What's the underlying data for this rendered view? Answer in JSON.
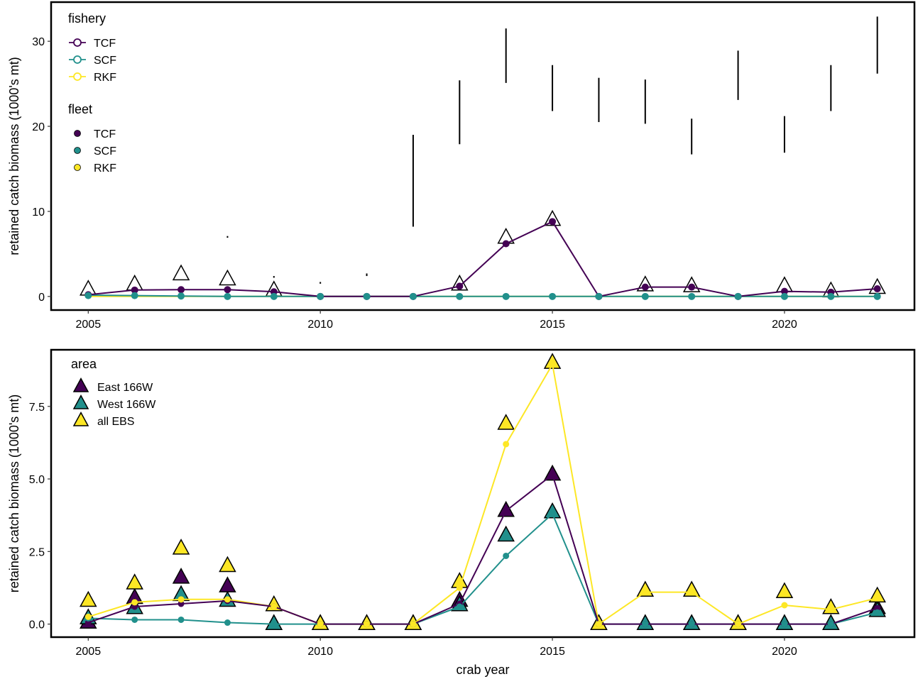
{
  "colors": {
    "TCF": "#440154",
    "SCF": "#21908C",
    "RKF": "#FDE725",
    "black": "#000000"
  },
  "chart_data": [
    {
      "type": "line",
      "xlabel": "",
      "ylabel": "retained catch biomass (1000's mt)",
      "xlim": [
        2004.2,
        2022.8
      ],
      "ylim": [
        -1.6,
        34.6
      ],
      "x_ticks": [
        2005,
        2010,
        2015,
        2020
      ],
      "y_ticks": [
        0,
        10,
        20,
        30
      ],
      "legend_fishery": {
        "title": "fishery",
        "items": [
          "TCF",
          "SCF",
          "RKF"
        ]
      },
      "legend_fleet": {
        "title": "fleet",
        "items": [
          "TCF",
          "SCF",
          "RKF"
        ]
      },
      "fishery_lines": [
        {
          "name": "TCF",
          "x": [
            2005,
            2006,
            2007,
            2008,
            2009,
            2010,
            2011,
            2012,
            2013,
            2014,
            2015,
            2016,
            2017,
            2018,
            2019,
            2020,
            2021,
            2022
          ],
          "y": [
            0.2,
            0.75,
            0.8,
            0.8,
            0.55,
            0,
            0,
            0,
            1.2,
            6.2,
            8.8,
            0,
            1.1,
            1.1,
            0,
            0.6,
            0.5,
            0.9
          ]
        },
        {
          "name": "SCF",
          "x": [
            2005,
            2006,
            2007,
            2008,
            2009,
            2010,
            2011,
            2012,
            2013,
            2014,
            2015,
            2016,
            2017,
            2018,
            2019,
            2020,
            2021,
            2022
          ],
          "y": [
            0.15,
            0.1,
            0.05,
            0,
            0,
            0,
            0,
            0,
            0,
            0,
            0,
            0,
            0,
            0,
            0,
            0,
            0,
            0
          ]
        },
        {
          "name": "RKF",
          "x": [
            2005,
            2006,
            2007,
            2008,
            2009,
            2010,
            2011,
            2012,
            2013,
            2014,
            2015,
            2016,
            2017,
            2018,
            2019,
            2020,
            2021,
            2022
          ],
          "y": [
            0,
            0,
            0,
            0,
            0,
            0,
            0,
            0,
            0,
            0,
            0,
            0,
            0,
            0,
            0,
            0,
            0,
            0
          ]
        }
      ],
      "fleet_points": [
        {
          "name": "TCF",
          "x": [
            2005,
            2006,
            2007,
            2008,
            2009,
            2010,
            2011,
            2012,
            2013,
            2014,
            2015,
            2016,
            2017,
            2018,
            2019,
            2020,
            2021,
            2022
          ],
          "y": [
            0.2,
            0.75,
            0.8,
            0.8,
            0.55,
            0,
            0,
            0,
            1.2,
            6.2,
            8.8,
            0,
            1.1,
            1.1,
            0,
            0.6,
            0.5,
            0.9
          ]
        },
        {
          "name": "SCF",
          "x": [
            2005,
            2006,
            2007,
            2008,
            2009,
            2010,
            2011,
            2012,
            2013,
            2014,
            2015,
            2016,
            2017,
            2018,
            2019,
            2020,
            2021,
            2022
          ],
          "y": [
            0.1,
            0.1,
            0.05,
            0,
            0,
            0,
            0,
            0,
            0,
            0,
            0,
            0,
            0,
            0,
            0,
            0,
            0,
            0
          ]
        }
      ],
      "observed_total": {
        "x": [
          2005,
          2006,
          2007,
          2008,
          2009,
          2013,
          2014,
          2015,
          2017,
          2018,
          2020,
          2021,
          2022
        ],
        "y": [
          0.8,
          1.4,
          2.6,
          2.0,
          0.7,
          1.4,
          6.9,
          9.0,
          1.3,
          1.2,
          1.2,
          0.6,
          1.0
        ]
      },
      "intervals": [
        {
          "x": 2012,
          "low": 8.2,
          "high": 19.0
        },
        {
          "x": 2013,
          "low": 17.9,
          "high": 25.4
        },
        {
          "x": 2014,
          "low": 25.1,
          "high": 31.5
        },
        {
          "x": 2015,
          "low": 21.8,
          "high": 27.2
        },
        {
          "x": 2016,
          "low": 20.5,
          "high": 25.7
        },
        {
          "x": 2017,
          "low": 20.3,
          "high": 25.5
        },
        {
          "x": 2018,
          "low": 16.7,
          "high": 20.9
        },
        {
          "x": 2019,
          "low": 23.1,
          "high": 28.9
        },
        {
          "x": 2020,
          "low": 16.9,
          "high": 21.2
        },
        {
          "x": 2021,
          "low": 21.8,
          "high": 27.2
        },
        {
          "x": 2022,
          "low": 26.2,
          "high": 32.9
        },
        {
          "x": 2008,
          "low": 6.9,
          "high": 7.1
        },
        {
          "x": 2009,
          "low": 2.2,
          "high": 2.4
        },
        {
          "x": 2010,
          "low": 1.5,
          "high": 1.7
        },
        {
          "x": 2011,
          "low": 2.4,
          "high": 2.7
        }
      ]
    },
    {
      "type": "line",
      "xlabel": "crab year",
      "ylabel": "retained catch biomass (1000's mt)",
      "xlim": [
        2004.2,
        2022.8
      ],
      "ylim": [
        -0.45,
        9.45
      ],
      "x_ticks": [
        2005,
        2010,
        2015,
        2020
      ],
      "y_ticks": [
        0.0,
        2.5,
        5.0,
        7.5
      ],
      "y_tick_labels": [
        "0.0",
        "2.5",
        "5.0",
        "7.5"
      ],
      "legend_area": {
        "title": "area",
        "items": [
          "East 166W",
          "West 166W",
          "all EBS"
        ]
      },
      "lines": [
        {
          "name": "East 166W",
          "x": [
            2005,
            2006,
            2007,
            2008,
            2009,
            2010,
            2011,
            2012,
            2013,
            2014,
            2015,
            2016,
            2017,
            2018,
            2019,
            2020,
            2021,
            2022
          ],
          "y": [
            0.05,
            0.6,
            0.7,
            0.8,
            0.6,
            0,
            0,
            0,
            0.7,
            3.9,
            5.15,
            0,
            0,
            0,
            0,
            0,
            0,
            0.55
          ]
        },
        {
          "name": "West 166W",
          "x": [
            2005,
            2006,
            2007,
            2008,
            2009,
            2010,
            2011,
            2012,
            2013,
            2014,
            2015,
            2016,
            2017,
            2018,
            2019,
            2020,
            2021,
            2022
          ],
          "y": [
            0.2,
            0.15,
            0.15,
            0.05,
            0,
            0,
            0,
            0,
            0.6,
            2.35,
            3.8,
            0,
            0,
            0,
            0,
            0,
            0,
            0.4
          ]
        },
        {
          "name": "all EBS",
          "x": [
            2005,
            2006,
            2007,
            2008,
            2009,
            2010,
            2011,
            2012,
            2013,
            2014,
            2015,
            2016,
            2017,
            2018,
            2019,
            2020,
            2021,
            2022
          ],
          "y": [
            0.25,
            0.75,
            0.85,
            0.85,
            0.6,
            0,
            0,
            0,
            1.25,
            6.2,
            8.95,
            0,
            1.1,
            1.1,
            0,
            0.65,
            0.5,
            0.9
          ]
        }
      ],
      "triangles": [
        {
          "name": "East 166W",
          "x": [
            2005,
            2006,
            2007,
            2008,
            2009,
            2010,
            2011,
            2012,
            2013,
            2014,
            2015,
            2016,
            2017,
            2018,
            2019,
            2020,
            2021,
            2022
          ],
          "y": [
            0.05,
            0.9,
            1.6,
            1.3,
            0,
            0,
            0,
            0,
            0.8,
            3.9,
            5.15,
            0,
            0,
            0,
            0,
            0,
            0,
            0.55
          ]
        },
        {
          "name": "West 166W",
          "x": [
            2005,
            2006,
            2007,
            2008,
            2009,
            2010,
            2011,
            2012,
            2013,
            2014,
            2015,
            2016,
            2017,
            2018,
            2019,
            2020,
            2021,
            2022
          ],
          "y": [
            0.2,
            0.55,
            1.0,
            0.8,
            0,
            0,
            0,
            0,
            0.65,
            3.05,
            3.85,
            0,
            0,
            0,
            0,
            0,
            0,
            0.45
          ]
        },
        {
          "name": "all EBS",
          "x": [
            2005,
            2006,
            2007,
            2008,
            2009,
            2010,
            2011,
            2012,
            2013,
            2014,
            2015,
            2016,
            2017,
            2018,
            2019,
            2020,
            2021,
            2022
          ],
          "y": [
            0.8,
            1.4,
            2.6,
            2.0,
            0.65,
            0,
            0,
            0,
            1.45,
            6.9,
            9.0,
            0,
            1.15,
            1.15,
            0,
            1.1,
            0.55,
            0.95
          ]
        }
      ]
    }
  ]
}
